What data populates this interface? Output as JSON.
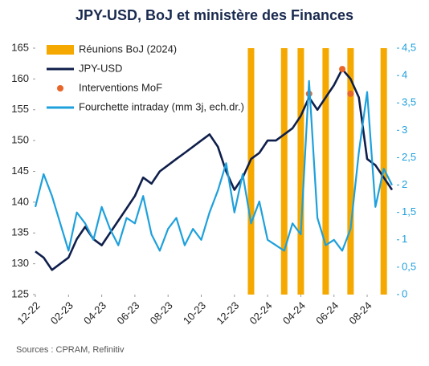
{
  "chart_data": {
    "type": "line",
    "title": "JPY-USD, BoJ et ministère des Finances",
    "source": "Sources : CPRAM, Refinitiv",
    "legend": "upper left",
    "categories": [
      "12-22",
      null,
      null,
      null,
      "02-23",
      null,
      null,
      null,
      "04-23",
      null,
      null,
      null,
      "06-23",
      null,
      null,
      null,
      "08-23",
      null,
      null,
      null,
      "10-23",
      null,
      null,
      null,
      "12-23",
      null,
      null,
      null,
      "02-24",
      null,
      null,
      null,
      "04-24",
      null,
      null,
      null,
      "06-24",
      null,
      null,
      null,
      "08-24",
      null,
      null,
      null
    ],
    "ylim": [
      125,
      165
    ],
    "yticks": [
      125,
      130,
      135,
      140,
      145,
      150,
      155,
      160,
      165
    ],
    "y2lim": [
      0,
      4.5
    ],
    "y2ticks": [
      0,
      {
        "value": 0.5,
        "label": "0,5"
      },
      1,
      {
        "value": 1.5,
        "label": "1,5"
      },
      2,
      {
        "value": 2.5,
        "label": "2,5"
      },
      3,
      {
        "value": 3.5,
        "label": "3,5"
      },
      4,
      {
        "value": 4.5,
        "label": "4,5"
      }
    ],
    "series": [
      {
        "name": "Réunions BoJ (2024)",
        "type": "bar",
        "color": "#f5a800",
        "values": [
          null,
          null,
          null,
          null,
          null,
          null,
          null,
          null,
          null,
          null,
          null,
          null,
          null,
          null,
          null,
          null,
          null,
          null,
          null,
          null,
          null,
          null,
          null,
          null,
          null,
          null,
          165,
          null,
          null,
          null,
          165,
          null,
          165,
          null,
          null,
          165,
          null,
          null,
          165,
          null,
          null,
          null,
          165,
          null
        ]
      },
      {
        "name": "JPY-USD",
        "type": "line",
        "color": "#0f1f4b",
        "values": [
          132,
          131,
          129,
          130,
          131,
          134,
          136,
          134,
          133,
          135,
          137,
          139,
          141,
          144,
          143,
          145,
          146,
          147,
          148,
          149,
          150,
          151,
          149,
          145,
          142,
          144,
          147,
          148,
          150,
          150,
          151,
          152,
          154,
          157,
          155,
          157,
          159,
          161.6,
          160,
          157,
          147,
          146,
          144,
          142
        ]
      },
      {
        "name": "Interventions MoF",
        "type": "scatter",
        "color": "#e8662a",
        "values": [
          null,
          null,
          null,
          null,
          null,
          null,
          null,
          null,
          null,
          null,
          null,
          null,
          null,
          null,
          null,
          null,
          null,
          null,
          null,
          null,
          null,
          null,
          null,
          null,
          null,
          null,
          null,
          null,
          null,
          null,
          null,
          null,
          null,
          157.6,
          null,
          null,
          null,
          161.6,
          157.6,
          null,
          null,
          null,
          null,
          null
        ]
      },
      {
        "name": "Fourchette intraday (mm 3j, ech.dr.)",
        "type": "line",
        "axis": "y2",
        "color": "#1ea0dc",
        "values": [
          1.6,
          2.2,
          1.8,
          1.3,
          0.8,
          1.5,
          1.3,
          1.0,
          1.6,
          1.2,
          0.9,
          1.4,
          1.3,
          1.8,
          1.1,
          0.8,
          1.2,
          1.4,
          0.9,
          1.2,
          1.0,
          1.5,
          1.9,
          2.4,
          1.5,
          2.2,
          1.3,
          1.7,
          1.0,
          0.9,
          0.8,
          1.3,
          1.1,
          3.9,
          1.4,
          0.9,
          1.0,
          0.8,
          1.2,
          2.6,
          3.7,
          1.6,
          2.3,
          2.0
        ]
      }
    ]
  }
}
